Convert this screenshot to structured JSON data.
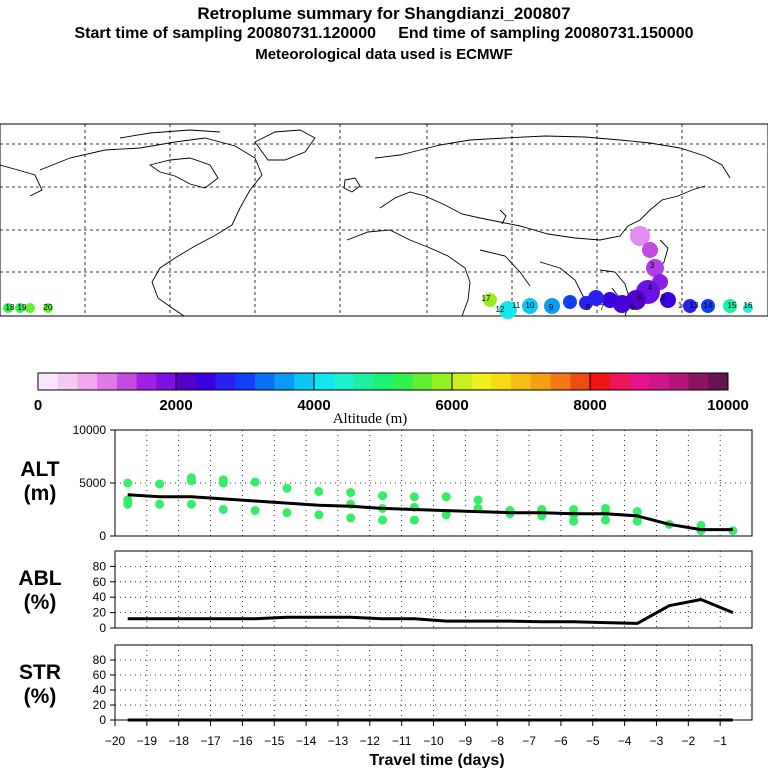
{
  "title": "Retroplume summary for Shangdianzi_200807",
  "start_label": "Start time of sampling 20080731.120000",
  "end_label": "End time of sampling 20080731.150000",
  "met_label": "Meteorological data used is ECMWF",
  "colors": {
    "alt_line": "#000000",
    "alt_points": "#33ee66",
    "colorbar": [
      "#fbe6fb",
      "#f5c8f5",
      "#efa8ef",
      "#e07be6",
      "#c44ae0",
      "#a020e6",
      "#7a10e6",
      "#5500c8",
      "#3a00e0",
      "#2a20f0",
      "#1040f5",
      "#0a70f5",
      "#0a9cf5",
      "#0ac8f5",
      "#14e6f0",
      "#1ef0d2",
      "#1ef0a0",
      "#1ef078",
      "#32f050",
      "#64f032",
      "#96f01e",
      "#c8f01e",
      "#f0f01e",
      "#f5dc14",
      "#f5be14",
      "#f5a014",
      "#f57814",
      "#f04b14",
      "#f01414",
      "#f0145a",
      "#e6148c",
      "#d2148c",
      "#b41478",
      "#8c1464",
      "#641450"
    ]
  },
  "colorbar": {
    "ticks": [
      "0",
      "2000",
      "4000",
      "6000",
      "8000",
      "10000"
    ],
    "label": "Altitude (m)"
  },
  "map": {
    "day_labels": [
      "12",
      "11",
      "10",
      "9",
      "8",
      "7",
      "6",
      "5",
      "4",
      "3",
      "2",
      "1",
      "13",
      "14",
      "15",
      "16",
      "17",
      "18",
      "19",
      "20"
    ]
  },
  "chart_data": [
    {
      "type": "line",
      "panel": "ALT",
      "ylabel_top": "ALT",
      "ylabel_bottom": "(m)",
      "x": [
        -19.6,
        -18.6,
        -17.6,
        -16.6,
        -15.6,
        -14.6,
        -13.6,
        -12.6,
        -11.6,
        -10.6,
        -9.6,
        -8.6,
        -7.6,
        -6.6,
        -5.6,
        -4.6,
        -3.6,
        -2.6,
        -1.6,
        -0.6
      ],
      "y": [
        3900,
        3700,
        3700,
        3500,
        3300,
        3100,
        2900,
        2800,
        2600,
        2500,
        2400,
        2300,
        2200,
        2200,
        2100,
        2100,
        1900,
        1100,
        600,
        600
      ],
      "scatter": [
        [
          -19.6,
          5000
        ],
        [
          -19.6,
          3400
        ],
        [
          -19.6,
          3000
        ],
        [
          -18.6,
          4900
        ],
        [
          -18.6,
          3000
        ],
        [
          -17.6,
          5500
        ],
        [
          -17.6,
          5200
        ],
        [
          -17.6,
          3000
        ],
        [
          -16.6,
          5300
        ],
        [
          -16.6,
          5000
        ],
        [
          -16.6,
          2500
        ],
        [
          -15.6,
          5100
        ],
        [
          -15.6,
          2400
        ],
        [
          -14.6,
          4500
        ],
        [
          -14.6,
          2200
        ],
        [
          -13.6,
          4200
        ],
        [
          -13.6,
          2000
        ],
        [
          -12.6,
          4100
        ],
        [
          -12.6,
          3000
        ],
        [
          -12.6,
          1700
        ],
        [
          -11.6,
          3800
        ],
        [
          -11.6,
          2600
        ],
        [
          -11.6,
          1500
        ],
        [
          -10.6,
          3700
        ],
        [
          -10.6,
          2700
        ],
        [
          -10.6,
          1500
        ],
        [
          -9.6,
          3700
        ],
        [
          -9.6,
          2000
        ],
        [
          -8.6,
          3400
        ],
        [
          -8.6,
          2600
        ],
        [
          -7.6,
          2400
        ],
        [
          -7.6,
          2100
        ],
        [
          -6.6,
          2500
        ],
        [
          -6.6,
          1900
        ],
        [
          -5.6,
          2500
        ],
        [
          -5.6,
          2000
        ],
        [
          -5.6,
          1400
        ],
        [
          -4.6,
          2600
        ],
        [
          -4.6,
          2200
        ],
        [
          -4.6,
          1500
        ],
        [
          -3.6,
          2300
        ],
        [
          -3.6,
          1400
        ],
        [
          -2.6,
          1100
        ],
        [
          -1.6,
          1000
        ],
        [
          -1.6,
          500
        ],
        [
          -0.6,
          500
        ]
      ],
      "ylim": [
        0,
        10000
      ],
      "yticks": [
        "10000",
        "5000",
        "0"
      ]
    },
    {
      "type": "line",
      "panel": "ABL",
      "ylabel_top": "ABL",
      "ylabel_bottom": "(%)",
      "x": [
        -19.6,
        -18.6,
        -17.6,
        -16.6,
        -15.6,
        -14.6,
        -13.6,
        -12.6,
        -11.6,
        -10.6,
        -9.6,
        -8.6,
        -7.6,
        -6.6,
        -5.6,
        -4.6,
        -3.6,
        -2.6,
        -1.6,
        -0.6
      ],
      "y": [
        12,
        12,
        12,
        12,
        12,
        14,
        14,
        14,
        12,
        12,
        9,
        9,
        9,
        8,
        8,
        7,
        6,
        29,
        37,
        20
      ],
      "ylim": [
        0,
        100
      ],
      "yticks": [
        "80",
        "60",
        "40",
        "20",
        "0"
      ]
    },
    {
      "type": "line",
      "panel": "STR",
      "ylabel_top": "STR",
      "ylabel_bottom": "(%)",
      "x": [
        -19.6,
        -18.6,
        -17.6,
        -16.6,
        -15.6,
        -14.6,
        -13.6,
        -12.6,
        -11.6,
        -10.6,
        -9.6,
        -8.6,
        -7.6,
        -6.6,
        -5.6,
        -4.6,
        -3.6,
        -2.6,
        -1.6,
        -0.6
      ],
      "y": [
        0,
        0,
        0,
        0,
        0,
        0,
        0,
        0,
        0,
        0,
        0,
        0,
        0,
        0,
        0,
        0,
        0,
        0,
        0,
        0
      ],
      "ylim": [
        0,
        100
      ],
      "yticks": [
        "80",
        "60",
        "40",
        "20",
        "0"
      ]
    }
  ],
  "xaxis": {
    "ticks": [
      "−20",
      "−19",
      "−18",
      "−17",
      "−16",
      "−15",
      "−14",
      "−13",
      "−12",
      "−11",
      "−10",
      "−9",
      "−8",
      "−7",
      "−6",
      "−5",
      "−4",
      "−3",
      "−2",
      "−1"
    ],
    "xlabel": "Travel time (days)",
    "xlim": [
      -20,
      0
    ]
  }
}
